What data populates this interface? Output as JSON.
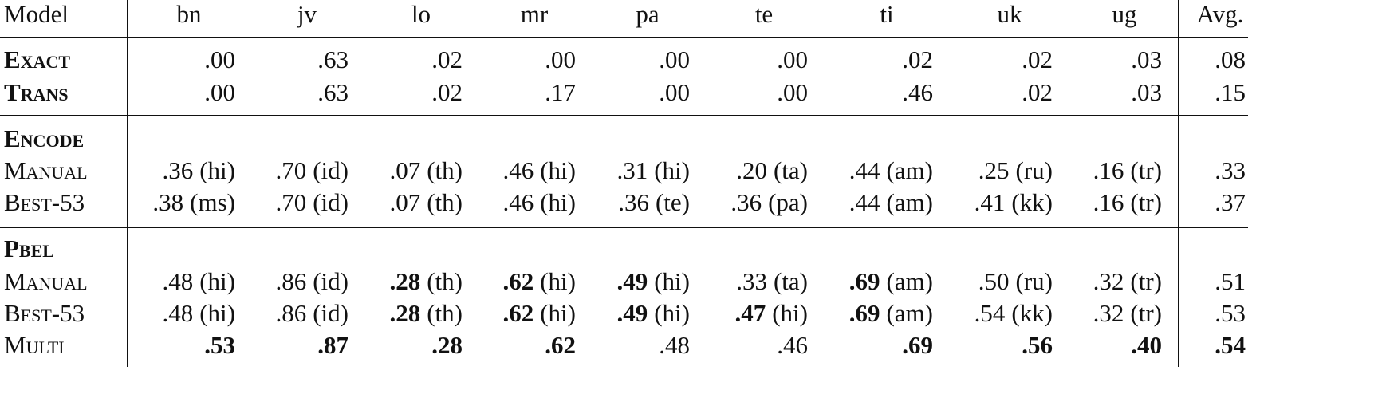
{
  "table": {
    "header": [
      "Model",
      "bn",
      "jv",
      "lo",
      "mr",
      "pa",
      "te",
      "ti",
      "uk",
      "ug",
      "Avg."
    ],
    "sections": [
      {
        "rows": [
          {
            "model": "Exact",
            "bold": true,
            "cells": [
              {
                "value": ".00"
              },
              {
                "value": ".63"
              },
              {
                "value": ".02"
              },
              {
                "value": ".00"
              },
              {
                "value": ".00"
              },
              {
                "value": ".00"
              },
              {
                "value": ".02"
              },
              {
                "value": ".02"
              },
              {
                "value": ".03"
              }
            ],
            "avg": {
              "value": ".08"
            }
          },
          {
            "model": "Trans",
            "bold": true,
            "cells": [
              {
                "value": ".00"
              },
              {
                "value": ".63"
              },
              {
                "value": ".02"
              },
              {
                "value": ".17"
              },
              {
                "value": ".00"
              },
              {
                "value": ".00"
              },
              {
                "value": ".46"
              },
              {
                "value": ".02"
              },
              {
                "value": ".03"
              }
            ],
            "avg": {
              "value": ".15"
            }
          }
        ]
      },
      {
        "title": "Encode",
        "rows": [
          {
            "model": "Manual",
            "cells": [
              {
                "value": ".36",
                "lang": "(hi)"
              },
              {
                "value": ".70",
                "lang": "(id)"
              },
              {
                "value": ".07",
                "lang": "(th)"
              },
              {
                "value": ".46",
                "lang": "(hi)"
              },
              {
                "value": ".31",
                "lang": "(hi)"
              },
              {
                "value": ".20",
                "lang": "(ta)"
              },
              {
                "value": ".44",
                "lang": "(am)"
              },
              {
                "value": ".25",
                "lang": "(ru)"
              },
              {
                "value": ".16",
                "lang": "(tr)"
              }
            ],
            "avg": {
              "value": ".33"
            }
          },
          {
            "model": "Best-53",
            "cells": [
              {
                "value": ".38",
                "lang": "(ms)"
              },
              {
                "value": ".70",
                "lang": "(id)"
              },
              {
                "value": ".07",
                "lang": "(th)"
              },
              {
                "value": ".46",
                "lang": "(hi)"
              },
              {
                "value": ".36",
                "lang": "(te)"
              },
              {
                "value": ".36",
                "lang": "(pa)"
              },
              {
                "value": ".44",
                "lang": "(am)"
              },
              {
                "value": ".41",
                "lang": "(kk)"
              },
              {
                "value": ".16",
                "lang": "(tr)"
              }
            ],
            "avg": {
              "value": ".37"
            }
          }
        ]
      },
      {
        "title": "Pbel",
        "rows": [
          {
            "model": "Manual",
            "cells": [
              {
                "value": ".48",
                "lang": "(hi)"
              },
              {
                "value": ".86",
                "lang": "(id)"
              },
              {
                "value": ".28",
                "lang": "(th)",
                "bold": true
              },
              {
                "value": ".62",
                "lang": "(hi)",
                "bold": true
              },
              {
                "value": ".49",
                "lang": "(hi)",
                "bold": true
              },
              {
                "value": ".33",
                "lang": "(ta)"
              },
              {
                "value": ".69",
                "lang": "(am)",
                "bold": true
              },
              {
                "value": ".50",
                "lang": "(ru)"
              },
              {
                "value": ".32",
                "lang": "(tr)"
              }
            ],
            "avg": {
              "value": ".51"
            }
          },
          {
            "model": "Best-53",
            "cells": [
              {
                "value": ".48",
                "lang": "(hi)"
              },
              {
                "value": ".86",
                "lang": "(id)"
              },
              {
                "value": ".28",
                "lang": "(th)",
                "bold": true
              },
              {
                "value": ".62",
                "lang": "(hi)",
                "bold": true
              },
              {
                "value": ".49",
                "lang": "(hi)",
                "bold": true
              },
              {
                "value": ".47",
                "lang": "(hi)",
                "bold": true
              },
              {
                "value": ".69",
                "lang": "(am)",
                "bold": true
              },
              {
                "value": ".54",
                "lang": "(kk)"
              },
              {
                "value": ".32",
                "lang": "(tr)"
              }
            ],
            "avg": {
              "value": ".53"
            }
          },
          {
            "model": "Multi",
            "cells": [
              {
                "value": ".53",
                "bold": true
              },
              {
                "value": ".87",
                "bold": true
              },
              {
                "value": ".28",
                "bold": true
              },
              {
                "value": ".62",
                "bold": true
              },
              {
                "value": ".48"
              },
              {
                "value": ".46"
              },
              {
                "value": ".69",
                "bold": true
              },
              {
                "value": ".56",
                "bold": true
              },
              {
                "value": ".40",
                "bold": true
              }
            ],
            "avg": {
              "value": ".54",
              "bold": true
            }
          }
        ]
      }
    ]
  }
}
